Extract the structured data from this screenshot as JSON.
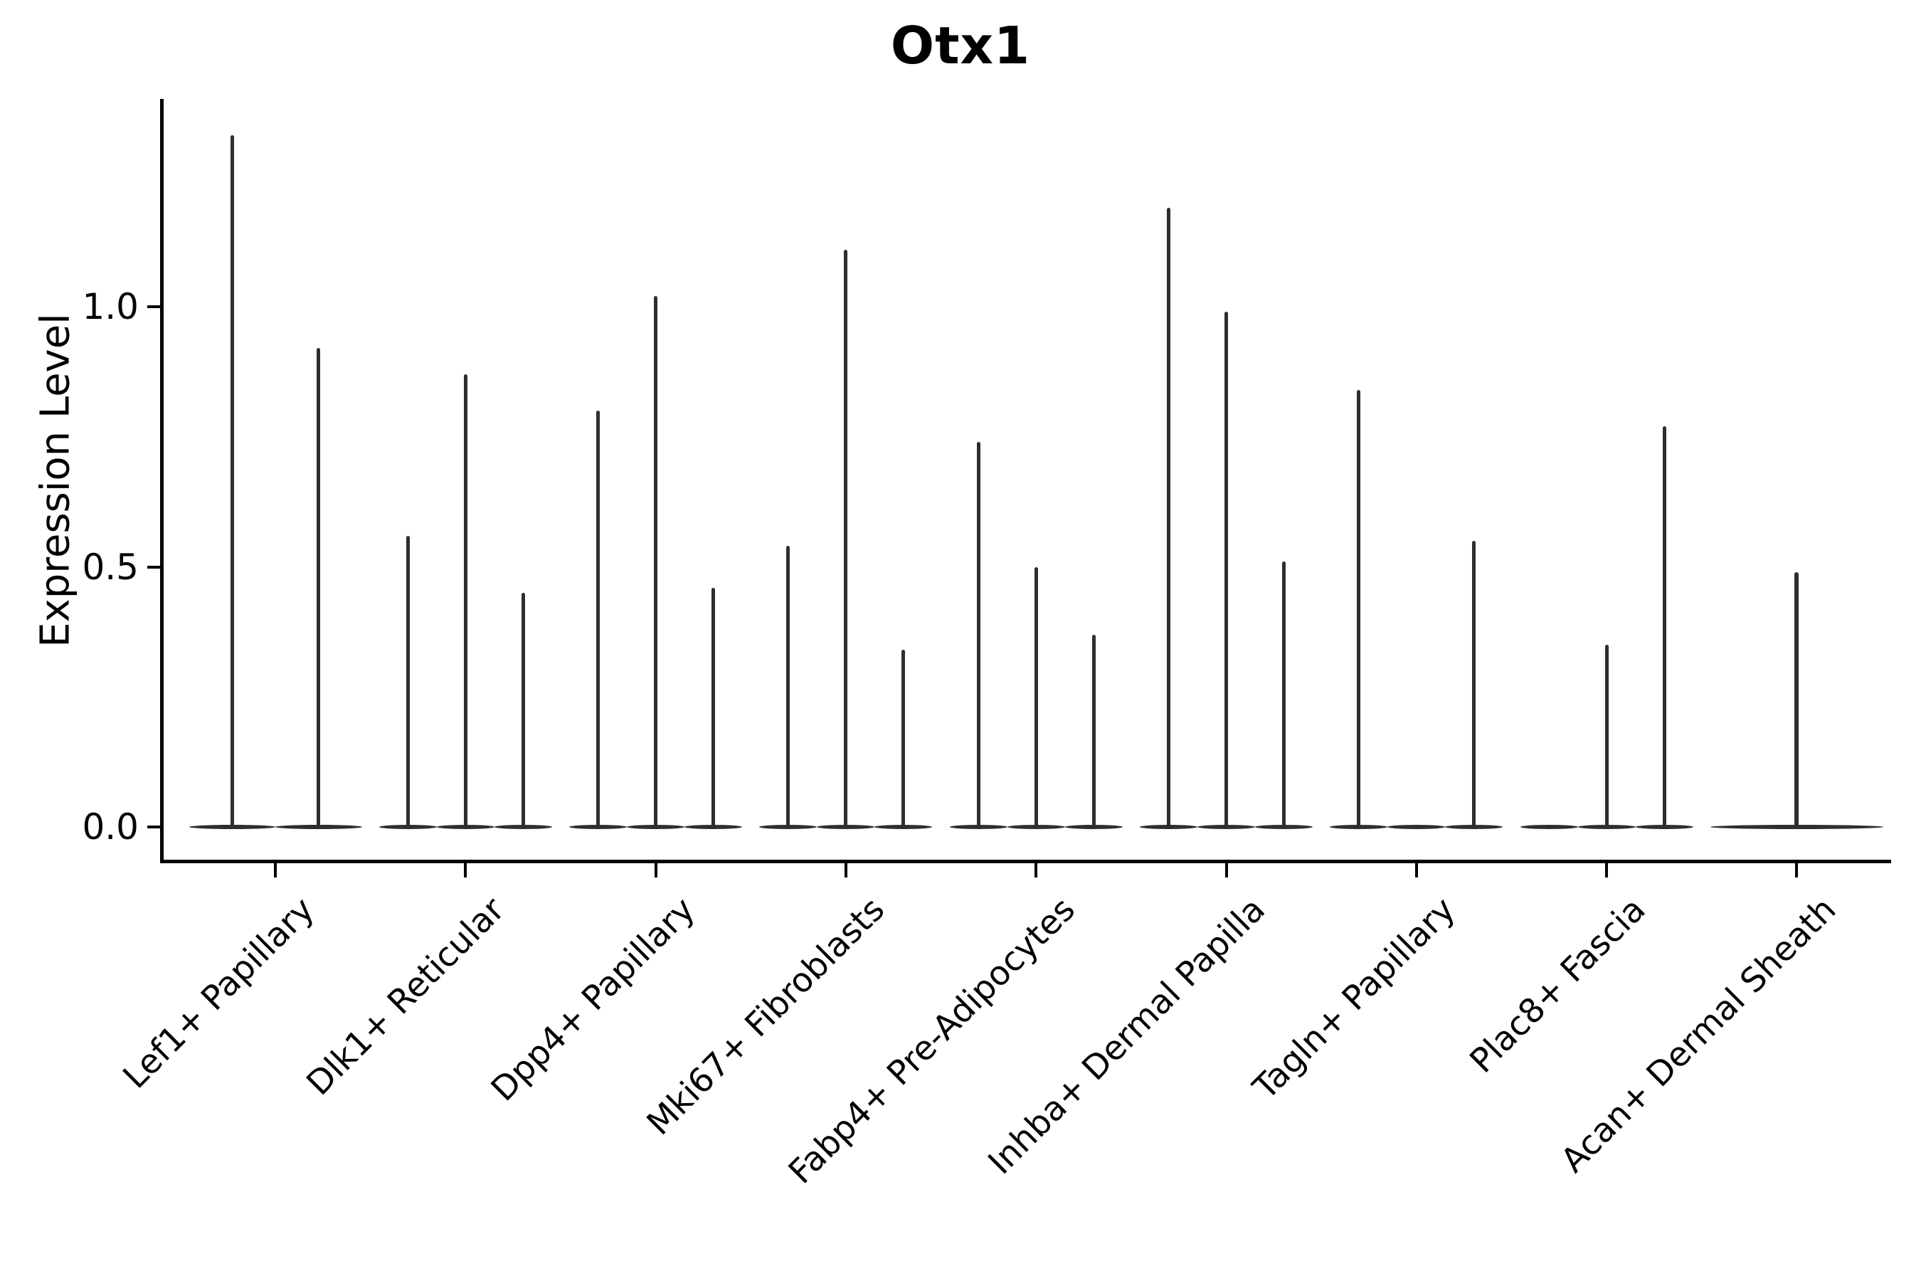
{
  "title": "Otx1",
  "y_axis": {
    "label": "Expression Level"
  },
  "chart_data": {
    "type": "violin",
    "title": "Otx1",
    "xlabel": "",
    "ylabel": "Expression Level",
    "ylim": [
      -0.07,
      1.4
    ],
    "grid": "off",
    "legend": "none",
    "yticks": [
      {
        "label": "0.0",
        "value": 0.0
      },
      {
        "label": "0.5",
        "value": 0.5
      },
      {
        "label": "1.0",
        "value": 1.0
      }
    ],
    "categories": [
      "Lef1+ Papillary",
      "Dlk1+ Reticular",
      "Dpp4+ Papillary",
      "Mki67+ Fibroblasts",
      "Fabp4+ Pre-Adipocytes",
      "Inhba+ Dermal Papilla",
      "Tagln+ Papillary",
      "Plac8+ Fascia",
      "Acan+ Dermal Sheath"
    ],
    "groups": [
      {
        "label": "Lef1+ Papillary",
        "violin_max_expression": [
          1.33,
          0.92
        ]
      },
      {
        "label": "Dlk1+ Reticular",
        "violin_max_expression": [
          0.56,
          0.87,
          0.45
        ]
      },
      {
        "label": "Dpp4+ Papillary",
        "violin_max_expression": [
          0.8,
          1.02,
          0.46
        ]
      },
      {
        "label": "Mki67+ Fibroblasts",
        "violin_max_expression": [
          0.54,
          1.11,
          0.34
        ]
      },
      {
        "label": "Fabp4+ Pre-Adipocytes",
        "violin_max_expression": [
          0.74,
          0.5,
          0.37
        ]
      },
      {
        "label": "Inhba+ Dermal Papilla",
        "violin_max_expression": [
          1.19,
          0.99,
          0.51
        ]
      },
      {
        "label": "Tagln+ Papillary",
        "violin_max_expression": [
          0.84,
          null,
          0.55
        ]
      },
      {
        "label": "Plac8+ Fascia",
        "violin_max_expression": [
          null,
          0.35,
          0.77
        ]
      },
      {
        "label": "Acan+ Dermal Sheath",
        "violin_max_expression": [
          0.49
        ]
      }
    ],
    "description": "Violin plot of mostly-zero expression; each violin is a flat lens at 0 with a thin density spike up to its max expression value."
  }
}
